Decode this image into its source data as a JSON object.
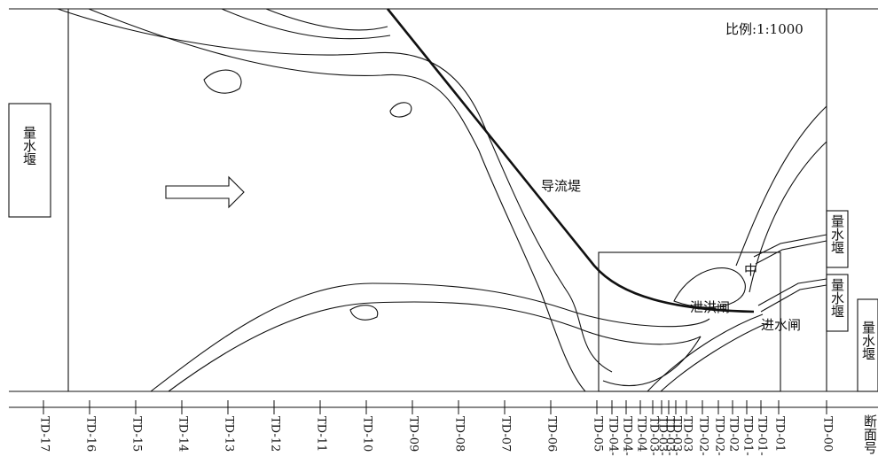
{
  "scale": "比例:1:1000",
  "labels": {
    "weir_left": "量水堰",
    "weir_right_top": "量水堰",
    "weir_right_mid": "量水堰",
    "weir_right_far": "量水堰",
    "diversion_dike": "导流堤",
    "flood_gate": "泄洪闸",
    "middle_dike": "中",
    "intake_gate": "进水闸"
  },
  "sections": [
    "TD-17",
    "TD-16",
    "TD-15",
    "TD-14",
    "TD-13",
    "TD-12",
    "TD-11",
    "TD-10",
    "TD-09",
    "TD-08",
    "TD-07",
    "TD-06",
    "TD-05",
    "TD-04-",
    "TD-04-",
    "TD-04",
    "TD-03-",
    "TD-03-",
    "TD-03-",
    "TD-03-",
    "TD-03",
    "TD-02-",
    "TD-02-",
    "TD-02",
    "TD-01-",
    "TD-01-",
    "TD-01",
    "TD-00"
  ],
  "axis_title": "断面号"
}
